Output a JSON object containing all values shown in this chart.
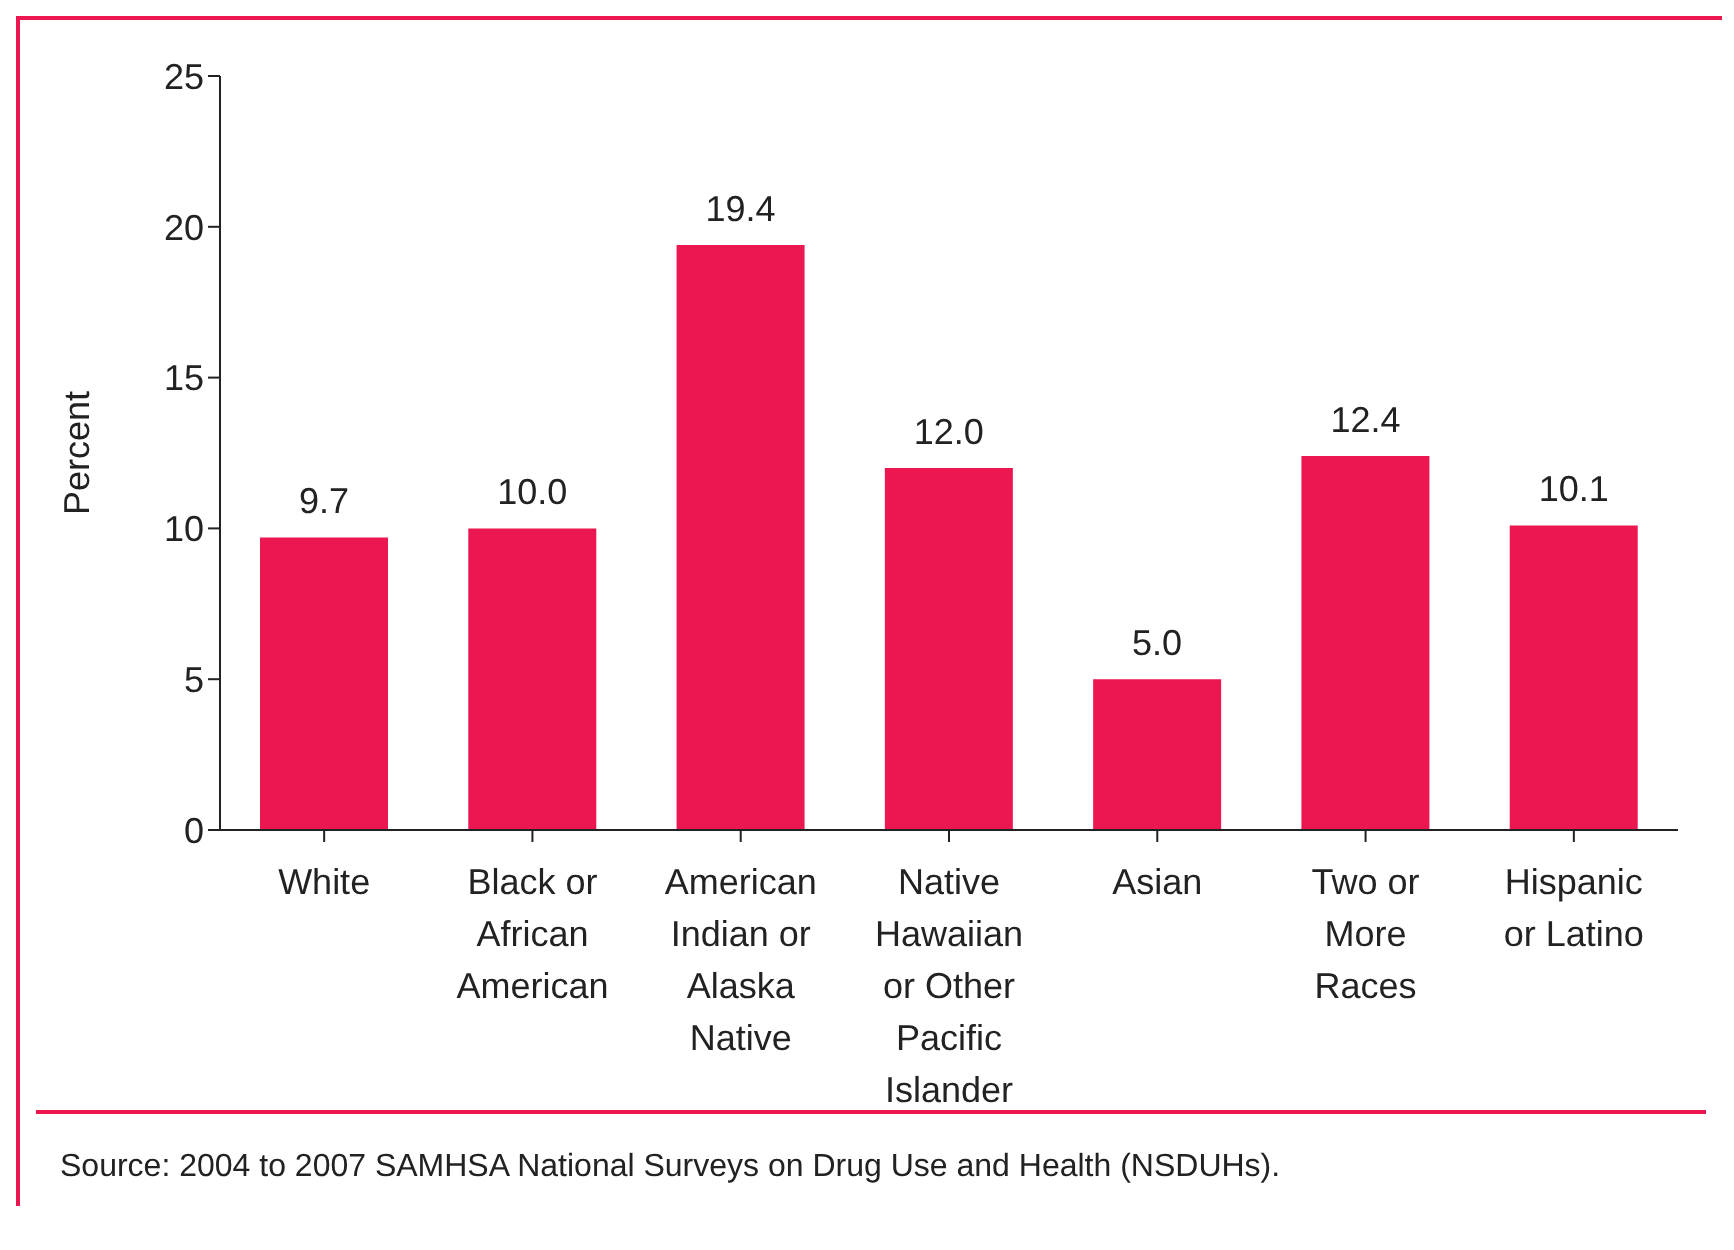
{
  "chart_data": {
    "type": "bar",
    "ylabel": "Percent",
    "categories": [
      "White",
      "Black or African American",
      "American Indian or Alaska Native",
      "Native Hawaiian or Other Pacific Islander",
      "Asian",
      "Two or More Races",
      "Hispanic or Latino"
    ],
    "values": [
      9.7,
      10.0,
      19.4,
      12.0,
      5.0,
      12.4,
      10.1
    ],
    "color": "#ec1651",
    "ylim": [
      0,
      25
    ],
    "yticks": [
      0,
      5,
      10,
      15,
      20,
      25
    ],
    "grid": false,
    "value_labels": [
      "9.7",
      "10.0",
      "19.4",
      "12.0",
      "5.0",
      "12.4",
      "10.1"
    ],
    "annotations": [
      "Source: 2004 to 2007 SAMHSA National Surveys on Drug Use and Health (NSDUHs)."
    ]
  }
}
